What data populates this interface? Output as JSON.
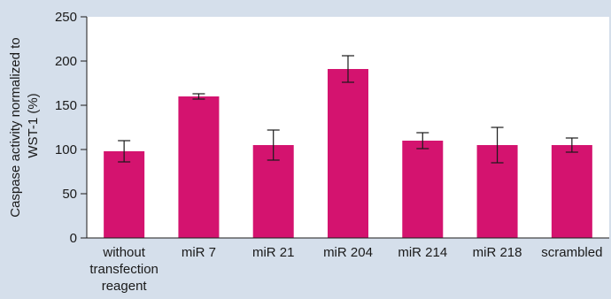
{
  "chart_data": {
    "type": "bar",
    "title": "",
    "ylabel_lines": [
      "Caspase activity normalized to",
      "WST-1 (%)"
    ],
    "xlabel": "",
    "ylim": [
      0,
      250
    ],
    "yticks": [
      0,
      50,
      100,
      150,
      200,
      250
    ],
    "yticks_text": [
      "0",
      "50",
      "100",
      "150",
      "200",
      "250"
    ],
    "categories": [
      [
        "without",
        "transfection",
        "reagent"
      ],
      [
        "miR 7"
      ],
      [
        "miR 21"
      ],
      [
        "miR 204"
      ],
      [
        "miR 214"
      ],
      [
        "miR 218"
      ],
      [
        "scrambled"
      ]
    ],
    "values": [
      98,
      160,
      105,
      191,
      110,
      105,
      105
    ],
    "errors": [
      12,
      3,
      17,
      15,
      9,
      20,
      8
    ],
    "bar_color": "#d4136f",
    "background_color": "#d5dfeb",
    "plot_background_color": "#ffffff",
    "grid": false
  }
}
